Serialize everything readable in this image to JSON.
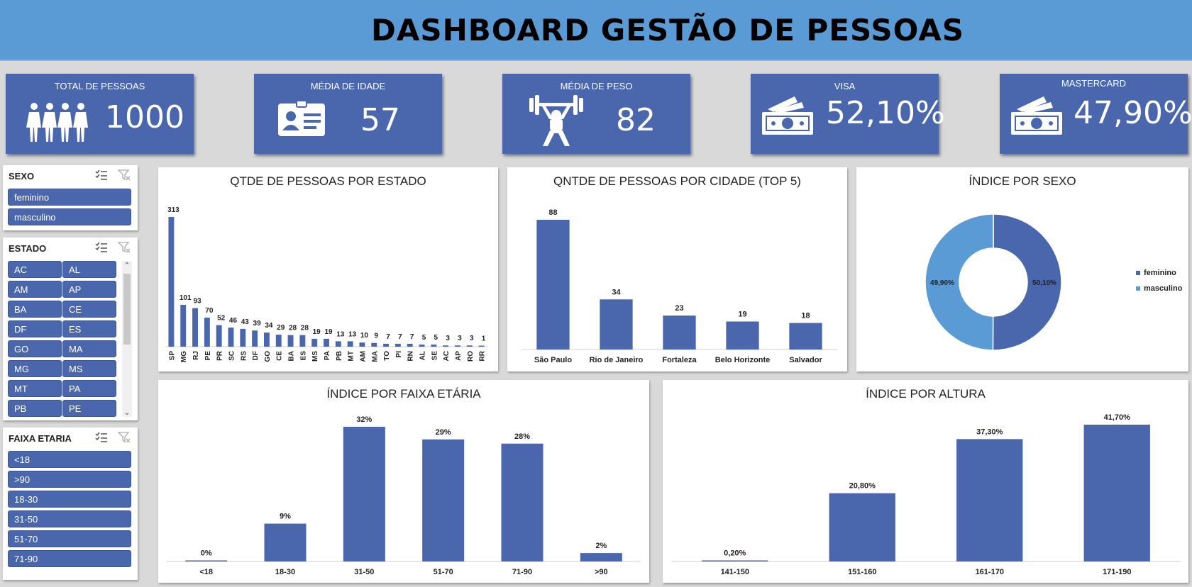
{
  "header": {
    "title": "DASHBOARD GESTÃO DE PESSOAS"
  },
  "kpis": [
    {
      "label": "TOTAL DE PESSOAS",
      "value": "1000",
      "icon": "people-icon"
    },
    {
      "label": "MÉDIA DE IDADE",
      "value": "57",
      "icon": "id-card-icon"
    },
    {
      "label": "MÉDIA DE PESO",
      "value": "82",
      "icon": "weightlifter-icon"
    },
    {
      "label": "VISA",
      "value": "52,10%",
      "icon": "money-icon"
    },
    {
      "label": "MASTERCARD",
      "value": "47,90%",
      "icon": "money-icon"
    }
  ],
  "slicers": {
    "sexo": {
      "title": "SEXO",
      "items": [
        "feminino",
        "masculino"
      ]
    },
    "estado": {
      "title": "ESTADO",
      "items": [
        "AC",
        "AL",
        "AM",
        "AP",
        "BA",
        "CE",
        "DF",
        "ES",
        "GO",
        "MA",
        "MG",
        "MS",
        "MT",
        "PA",
        "PB",
        "PE"
      ]
    },
    "faixa": {
      "title": "FAIXA ETARIA",
      "items": [
        "<18",
        ">90",
        "18-30",
        "31-50",
        "51-70",
        "71-90"
      ]
    }
  },
  "colors": {
    "bar": "#4a66ad",
    "light": "#5b9bd5",
    "header": "#5b9bd5"
  },
  "chart_data": [
    {
      "id": "estado",
      "type": "bar",
      "title": "QTDE DE PESSOAS POR ESTADO",
      "categories": [
        "SP",
        "MG",
        "RJ",
        "PE",
        "PR",
        "SC",
        "RS",
        "DF",
        "GO",
        "CE",
        "BA",
        "ES",
        "MS",
        "PA",
        "PB",
        "MT",
        "AM",
        "MA",
        "TO",
        "PI",
        "RN",
        "AL",
        "SE",
        "AC",
        "AP",
        "RO",
        "RR"
      ],
      "values": [
        313,
        101,
        93,
        70,
        52,
        46,
        43,
        39,
        34,
        29,
        28,
        28,
        19,
        19,
        13,
        13,
        10,
        9,
        7,
        7,
        7,
        5,
        5,
        3,
        3,
        3,
        1
      ],
      "labels": [
        "313",
        "101",
        "93",
        "70",
        "52",
        "46",
        "43",
        "39",
        "34",
        "29",
        "28",
        "28",
        "19",
        "19",
        "13",
        "13",
        "10",
        "9",
        "7",
        "7",
        "7",
        "5",
        "5",
        "3",
        "3",
        "3",
        "1"
      ],
      "ylim": [
        0,
        313
      ],
      "xlabel": "",
      "ylabel": ""
    },
    {
      "id": "cidade",
      "type": "bar",
      "title": "QNTDE DE PESSOAS  POR CIDADE (TOP 5)",
      "categories": [
        "São Paulo",
        "Rio de Janeiro",
        "Fortaleza",
        "Belo Horizonte",
        "Salvador"
      ],
      "values": [
        88,
        34,
        23,
        19,
        18
      ],
      "labels": [
        "88",
        "34",
        "23",
        "19",
        "18"
      ],
      "ylim": [
        0,
        88
      ],
      "xlabel": "",
      "ylabel": ""
    },
    {
      "id": "sexo",
      "type": "pie",
      "title": "ÍNDICE POR SEXO",
      "categories": [
        "feminino",
        "masculino"
      ],
      "values": [
        50.1,
        49.9
      ],
      "labels": [
        "50,10%",
        "49,90%"
      ],
      "legend": "right"
    },
    {
      "id": "faixa",
      "type": "bar",
      "title": "ÍNDICE POR FAIXA ETÁRIA",
      "categories": [
        "<18",
        "18-30",
        "31-50",
        "51-70",
        "71-90",
        ">90"
      ],
      "values": [
        0,
        9,
        32,
        29,
        28,
        2
      ],
      "labels": [
        "0%",
        "9%",
        "32%",
        "29%",
        "28%",
        "2%"
      ],
      "ylim": [
        0,
        32
      ],
      "xlabel": "",
      "ylabel": ""
    },
    {
      "id": "altura",
      "type": "bar",
      "title": "ÍNDICE POR ALTURA",
      "categories": [
        "141-150",
        "151-160",
        "161-170",
        "171-190"
      ],
      "values": [
        0.2,
        20.8,
        37.3,
        41.7
      ],
      "labels": [
        "0,20%",
        "20,80%",
        "37,30%",
        "41,70%"
      ],
      "ylim": [
        0,
        41.7
      ],
      "xlabel": "",
      "ylabel": ""
    }
  ]
}
